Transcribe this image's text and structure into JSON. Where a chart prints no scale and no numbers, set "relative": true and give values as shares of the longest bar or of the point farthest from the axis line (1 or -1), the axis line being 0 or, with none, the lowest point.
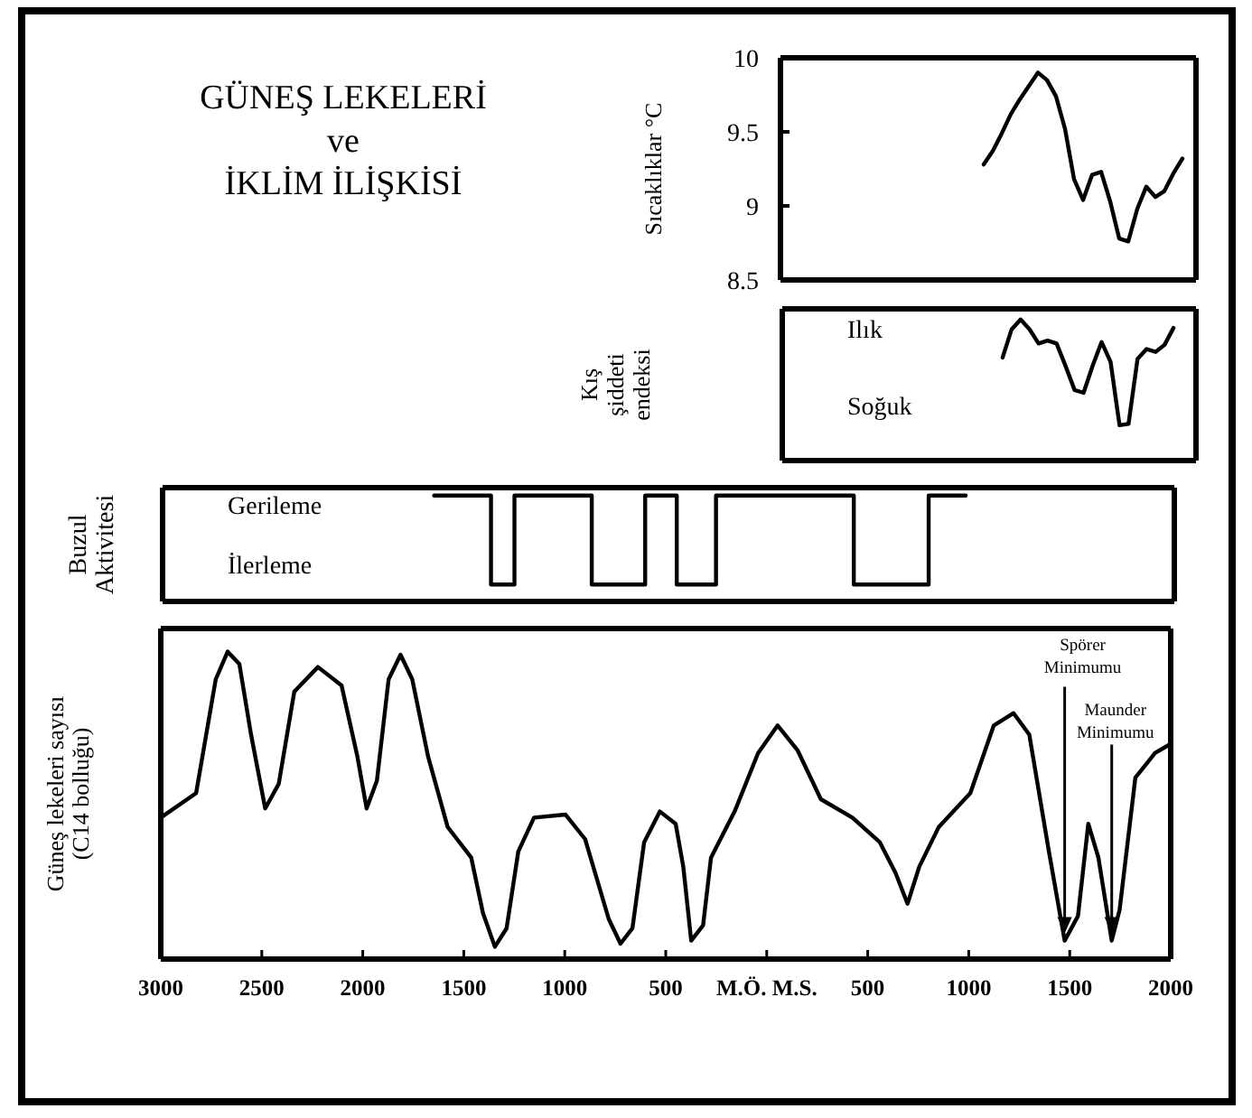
{
  "chart_data": [
    {
      "type": "other",
      "title": "GÜNEŞ LEKELERİ\nve\nİKLİM İLİŞKİSİ"
    },
    {
      "type": "line",
      "ylabel": "Sıcaklıklar °C",
      "ylim": [
        8.5,
        10
      ],
      "yticks": [
        8.5,
        9,
        9.5,
        10
      ],
      "tick_labels": "y",
      "color": "#000000",
      "categories": [
        null,
        null,
        null,
        null,
        null,
        null,
        null,
        null,
        null,
        null,
        null,
        null,
        null,
        null,
        null,
        null,
        null,
        null,
        null,
        null,
        null,
        null,
        null,
        null,
        null,
        null,
        null,
        null,
        null,
        null,
        null,
        null,
        null,
        null,
        null,
        null,
        null,
        null,
        null,
        null,
        null,
        null,
        null,
        null,
        null,
        null
      ],
      "values": [
        null,
        null,
        null,
        null,
        null,
        null,
        null,
        null,
        null,
        null,
        null,
        null,
        null,
        null,
        null,
        null,
        null,
        null,
        null,
        null,
        null,
        null,
        9.28,
        9.37,
        9.49,
        9.62,
        9.72,
        9.81,
        9.9,
        9.85,
        9.74,
        9.52,
        9.18,
        9.04,
        9.21,
        9.23,
        9.03,
        8.78,
        8.76,
        8.98,
        9.13,
        9.06,
        9.1,
        9.22,
        9.32,
        null
      ]
    },
    {
      "type": "line",
      "relative": true,
      "ylabel": "Kış\nşiddeti\nendeksi",
      "annotations": [
        "Ilık",
        "Soğuk"
      ],
      "tick_labels": false,
      "color": "#000000",
      "categories": [
        null,
        null,
        null,
        null,
        null,
        null,
        null,
        null,
        null,
        null,
        null,
        null,
        null,
        null,
        null,
        null,
        null,
        null,
        null,
        null,
        null,
        null,
        null,
        null,
        null,
        null,
        null,
        null,
        null,
        null,
        null,
        null,
        null,
        null,
        null,
        null,
        null,
        null,
        null,
        null,
        null,
        null,
        null,
        null,
        null,
        null
      ],
      "values": [
        null,
        null,
        null,
        null,
        null,
        null,
        null,
        null,
        null,
        null,
        null,
        null,
        null,
        null,
        null,
        null,
        null,
        null,
        null,
        null,
        null,
        null,
        null,
        null,
        0.73,
        0.93,
        1,
        0.93,
        0.83,
        0.85,
        0.83,
        0.67,
        0.5,
        0.48,
        0.67,
        0.84,
        0.7,
        0.25,
        0.26,
        0.72,
        0.79,
        0.77,
        0.82,
        0.94,
        null,
        null
      ]
    },
    {
      "type": "step",
      "relative": true,
      "ylabel": "Buzul\nAktivitesi",
      "annotations": [
        "Gerileme",
        "İlerleme"
      ],
      "xlim": [
        -3000,
        2000
      ],
      "tick_labels": false,
      "color": "#000000",
      "x": [
        -1658,
        -1377,
        -1261,
        -879,
        -615,
        -459,
        -265,
        416,
        786,
        969
      ],
      "values": [
        1,
        0.16,
        1,
        0.16,
        1,
        0.16,
        1,
        0.16,
        1,
        1
      ]
    },
    {
      "type": "line",
      "relative": true,
      "ylabel": "Güneş lekeleri sayısı\n(C14 bolluğu)",
      "xlim": [
        -3000,
        2000
      ],
      "tick_labels": "x",
      "color": "#000000",
      "xticks": [
        {
          "value": -3000,
          "label": "3000"
        },
        {
          "value": -2500,
          "label": "2500"
        },
        {
          "value": -2000,
          "label": "2000"
        },
        {
          "value": -1500,
          "label": "1500"
        },
        {
          "value": -1000,
          "label": "1000"
        },
        {
          "value": -500,
          "label": "500"
        },
        {
          "value": 0,
          "label": "M.Ö. M.S."
        },
        500,
        1000,
        1500,
        2000
      ],
      "annotations": [
        "Spörer Minimumu",
        "Maunder Minimumu"
      ],
      "x": [
        -3000,
        -2825,
        -2728,
        -2669,
        -2611,
        -2553,
        -2483,
        -2416,
        -2339,
        -2222,
        -2105,
        -2027,
        -1981,
        -1930,
        -1872,
        -1813,
        -1755,
        -1677,
        -1580,
        -1463,
        -1405,
        -1346,
        -1288,
        -1230,
        -1152,
        -996,
        -899,
        -782,
        -724,
        -665,
        -607,
        -529,
        -451,
        -413,
        -374,
        -315,
        -276,
        -159,
        -43,
        54,
        152,
        268,
        424,
        560,
        638,
        697,
        755,
        852,
        1008,
        1124,
        1222,
        1300,
        1397,
        1475,
        1541,
        1592,
        1642,
        1708,
        1747,
        1825,
        1922,
        2000
      ],
      "values": [
        0.46,
        0.54,
        0.91,
        1,
        0.96,
        0.73,
        0.49,
        0.57,
        0.87,
        0.95,
        0.89,
        0.66,
        0.49,
        0.58,
        0.91,
        0.99,
        0.91,
        0.66,
        0.43,
        0.33,
        0.15,
        0.04,
        0.1,
        0.35,
        0.46,
        0.47,
        0.39,
        0.13,
        0.05,
        0.1,
        0.38,
        0.48,
        0.44,
        0.3,
        0.06,
        0.11,
        0.33,
        0.48,
        0.67,
        0.76,
        0.68,
        0.52,
        0.46,
        0.38,
        0.28,
        0.18,
        0.3,
        0.43,
        0.54,
        0.76,
        0.8,
        0.73,
        0.35,
        0.06,
        0.14,
        0.44,
        0.33,
        0.06,
        0.16,
        0.59,
        0.67,
        0.7
      ]
    }
  ]
}
